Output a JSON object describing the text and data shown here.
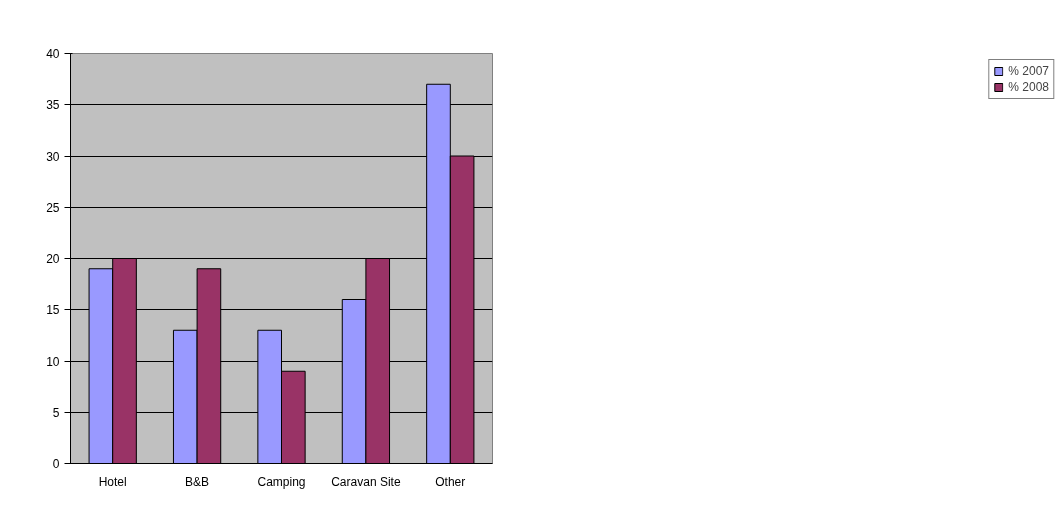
{
  "chart_data": {
    "type": "bar",
    "categories": [
      "Hotel",
      "B&B",
      "Camping",
      "Caravan Site",
      "Other"
    ],
    "series": [
      {
        "name": "% 2007",
        "color": "#9999ff",
        "values": [
          19,
          13,
          13,
          16,
          37
        ]
      },
      {
        "name": "% 2008",
        "color": "#993366",
        "values": [
          20,
          19,
          9,
          20,
          30
        ]
      }
    ],
    "ylim": [
      0,
      40
    ],
    "yticks": [
      0,
      5,
      10,
      15,
      20,
      25,
      30,
      35,
      40
    ],
    "grid": "y",
    "legend": "right"
  }
}
